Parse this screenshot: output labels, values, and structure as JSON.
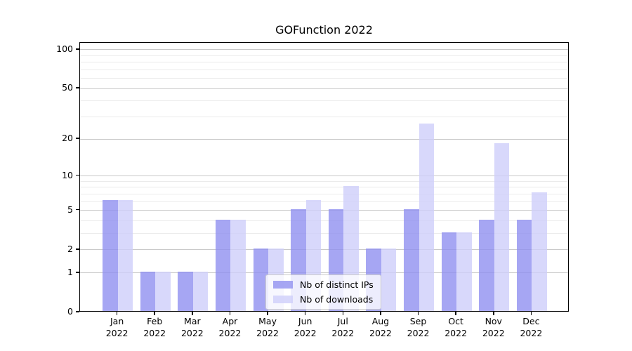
{
  "chart_data": {
    "type": "bar",
    "title": "GOFunction 2022",
    "categories": [
      "Jan",
      "Feb",
      "Mar",
      "Apr",
      "May",
      "Jun",
      "Jul",
      "Aug",
      "Sep",
      "Oct",
      "Nov",
      "Dec"
    ],
    "category_sublabel": "2022",
    "series": [
      {
        "name": "Nb of distinct IPs",
        "color": "#9090F0CC",
        "values": [
          6,
          1,
          1,
          4,
          2,
          5,
          5,
          2,
          5,
          3,
          4,
          4
        ]
      },
      {
        "name": "Nb of downloads",
        "color": "#CECEFACC",
        "values": [
          6,
          1,
          1,
          4,
          2,
          6,
          8,
          2,
          26,
          3,
          18,
          7
        ]
      }
    ],
    "y_axis": {
      "scale": "log1p",
      "max": 113,
      "major_ticks": [
        0,
        1,
        2,
        5,
        10,
        20,
        50,
        100
      ],
      "minor_ticks": [
        3,
        4,
        6,
        7,
        8,
        9,
        30,
        40,
        60,
        70,
        80,
        90
      ]
    },
    "legend": {
      "position": "bottom-center"
    },
    "grid": true,
    "colors": {
      "major_grid": "#C9C9C9",
      "minor_grid": "#EBEBEB",
      "axis": "#000000",
      "background": "#FFFFFF"
    }
  }
}
